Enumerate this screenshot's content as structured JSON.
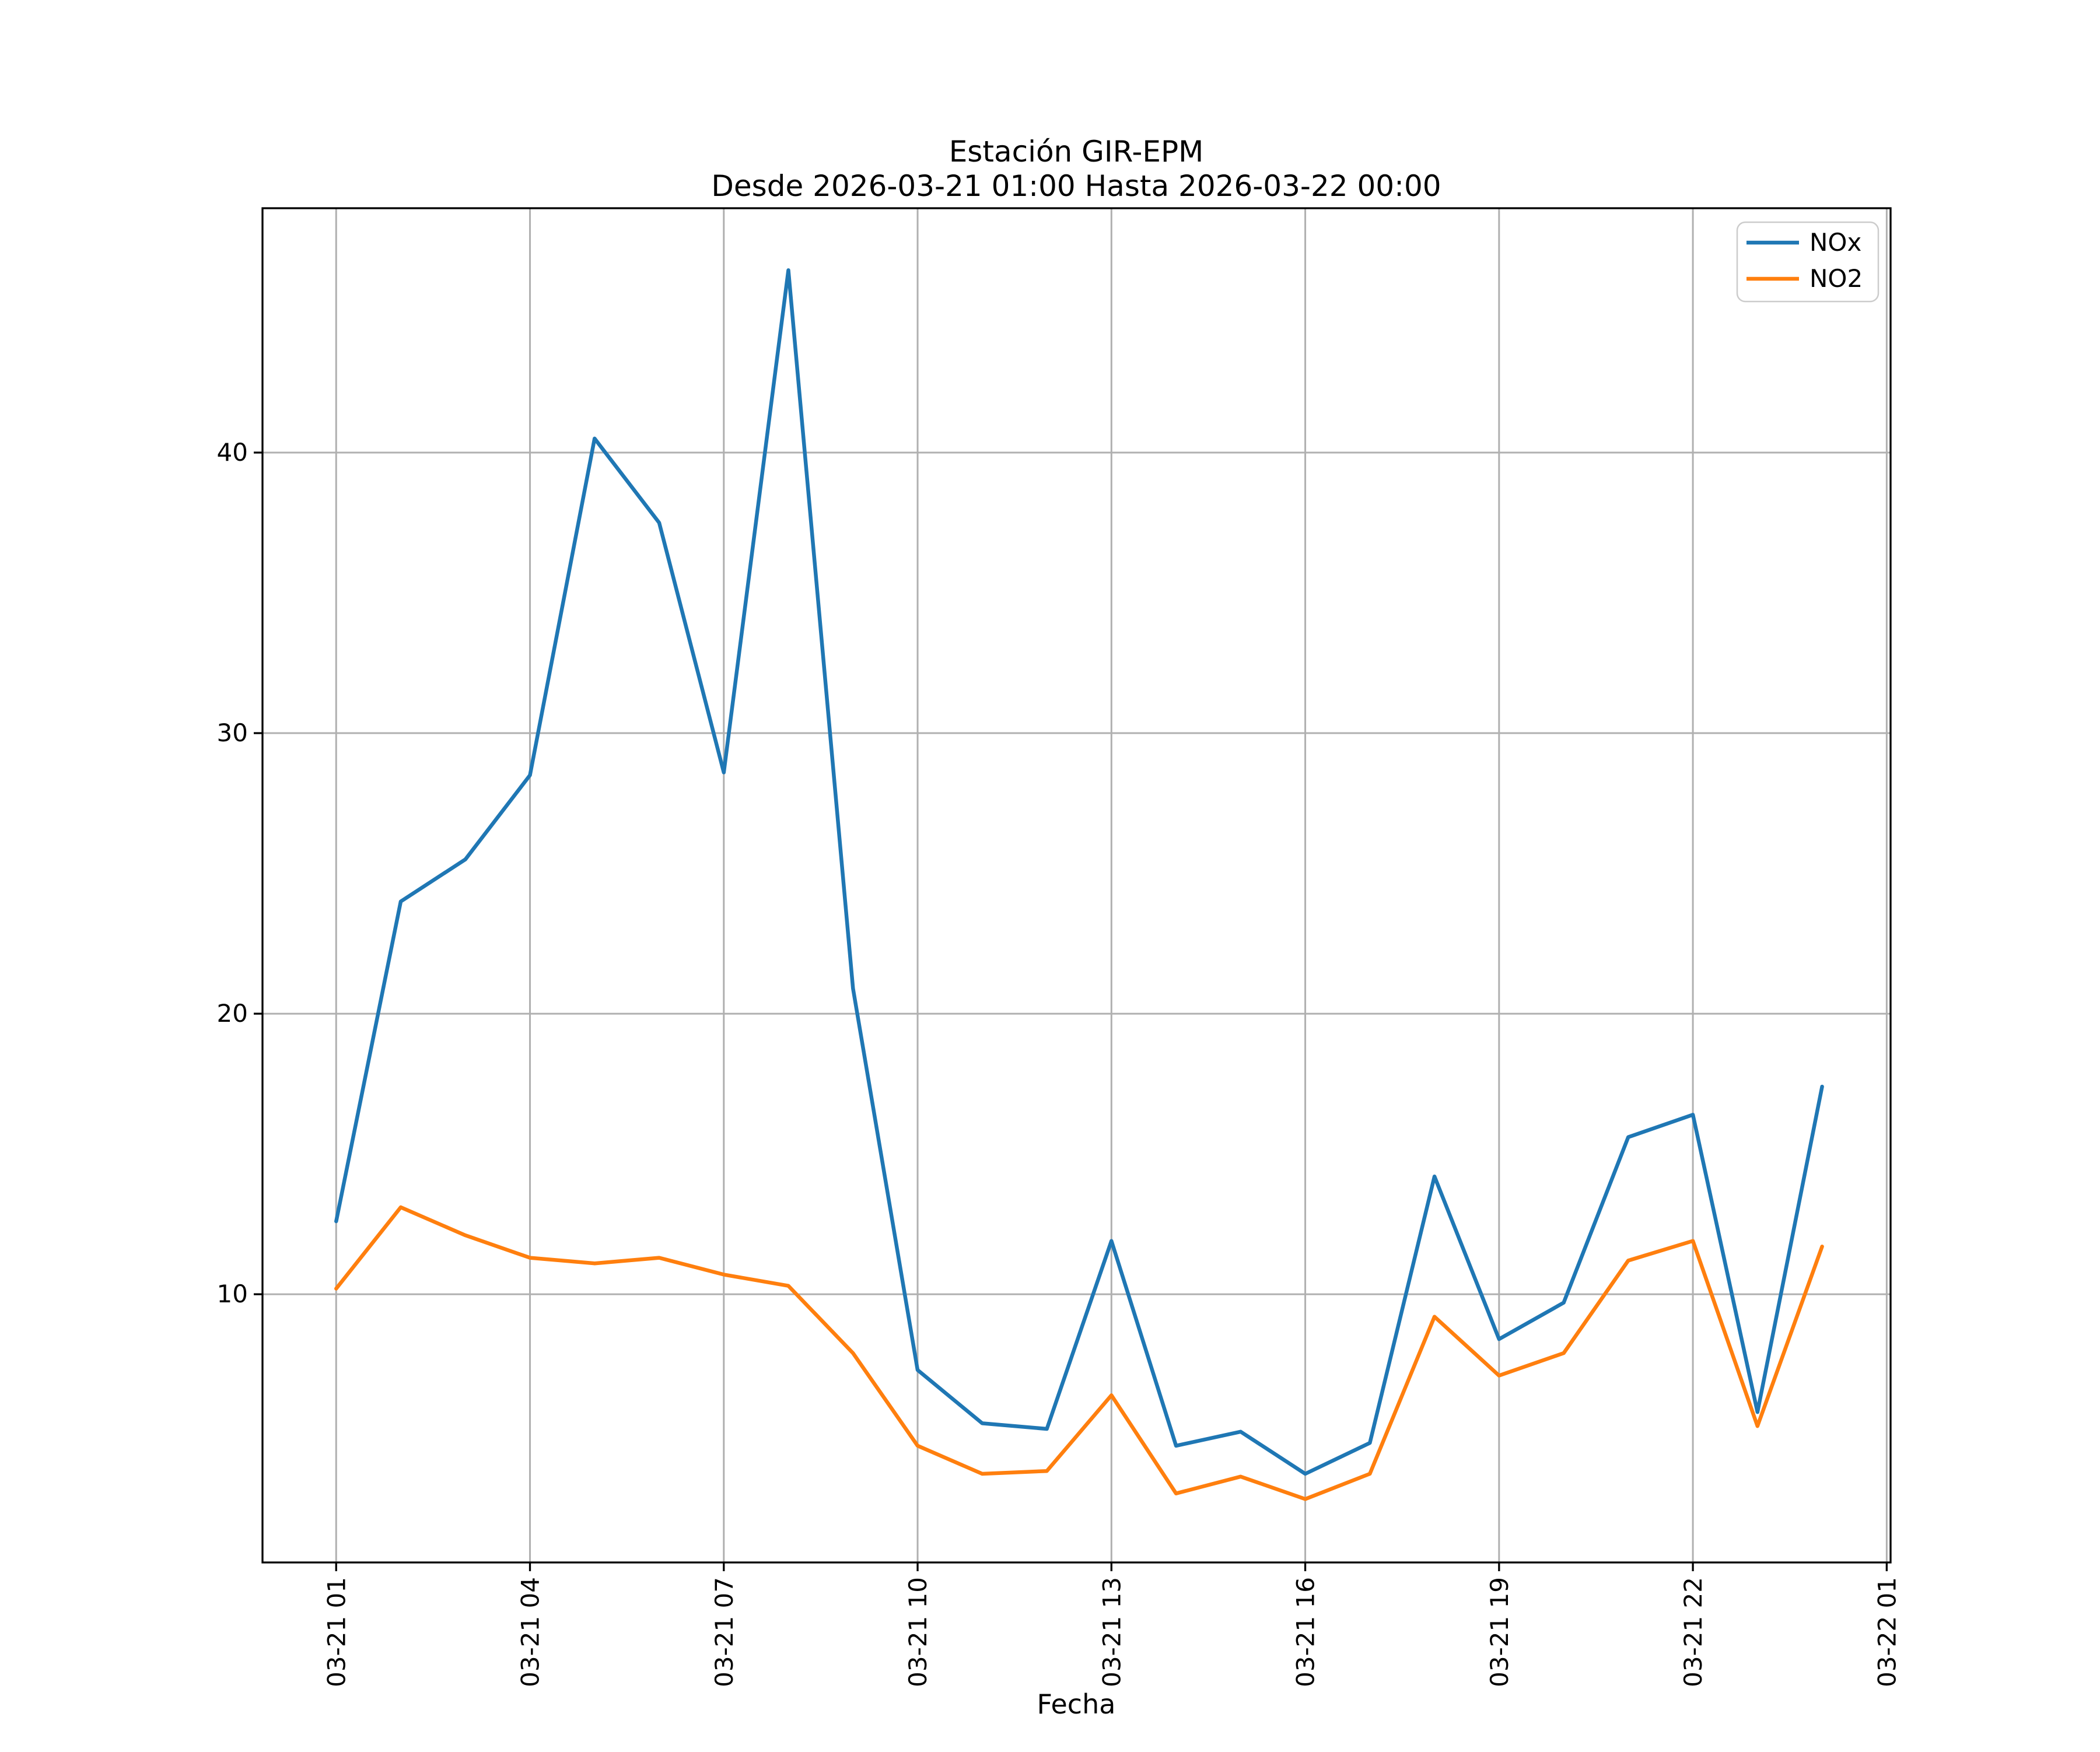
{
  "figure": {
    "background": "#ffffff"
  },
  "chart": {
    "title": "Estación GIR-EPM",
    "subtitle": "Desde 2026-03-21 01:00 Hasta 2026-03-22 00:00",
    "xlabel": "Fecha"
  },
  "legend": {
    "position": "upper-right",
    "entries": [
      {
        "label": "NOx",
        "color": "#1f77b4"
      },
      {
        "label": "NO2",
        "color": "#ff7f0e"
      }
    ]
  },
  "axes": {
    "grid_color": "#b0b0b0",
    "spine_color": "#000000",
    "text_color": "#000000",
    "y_tick_labels": [
      "10",
      "20",
      "30",
      "40"
    ],
    "x_tick_labels": [
      "03-21 01",
      "03-21 04",
      "03-21 07",
      "03-21 10",
      "03-21 13",
      "03-21 16",
      "03-21 19",
      "03-21 22",
      "03-22 01"
    ]
  },
  "chart_data": {
    "type": "line",
    "title": "Estación GIR-EPM",
    "subtitle": "Desde 2026-03-21 01:00 Hasta 2026-03-22 00:00",
    "xlabel": "Fecha",
    "ylabel": "",
    "x_start": "2026-03-21 01:00",
    "x_step_hours": 1,
    "x_hours": [
      1,
      2,
      3,
      4,
      5,
      6,
      7,
      8,
      9,
      10,
      11,
      12,
      13,
      14,
      15,
      16,
      17,
      18,
      19,
      20,
      21,
      22,
      23,
      24
    ],
    "x_ticks": {
      "positions": [
        1,
        4,
        7,
        10,
        13,
        16,
        19,
        22,
        25
      ],
      "labels": [
        "03-21 01",
        "03-21 04",
        "03-21 07",
        "03-21 10",
        "03-21 13",
        "03-21 16",
        "03-21 19",
        "03-21 22",
        "03-22 01"
      ]
    },
    "y_ticks": [
      10,
      20,
      30,
      40
    ],
    "xlim": [
      -0.14,
      25.06
    ],
    "ylim": [
      0.44,
      48.71
    ],
    "grid": true,
    "legend_position": "upper right",
    "series": [
      {
        "name": "NOx",
        "color": "#1f77b4",
        "values": [
          12.6,
          24.0,
          25.5,
          28.5,
          40.5,
          37.5,
          28.6,
          46.5,
          20.9,
          7.3,
          5.4,
          5.2,
          11.9,
          4.6,
          5.1,
          3.6,
          4.7,
          14.2,
          8.4,
          9.7,
          15.6,
          16.4,
          5.8,
          17.4
        ]
      },
      {
        "name": "NO2",
        "color": "#ff7f0e",
        "values": [
          10.2,
          13.1,
          12.1,
          11.3,
          11.1,
          11.3,
          10.7,
          10.3,
          7.9,
          4.6,
          3.6,
          3.7,
          6.4,
          2.9,
          3.5,
          2.7,
          3.6,
          9.2,
          7.1,
          7.9,
          11.2,
          11.9,
          5.3,
          11.7
        ]
      }
    ]
  }
}
